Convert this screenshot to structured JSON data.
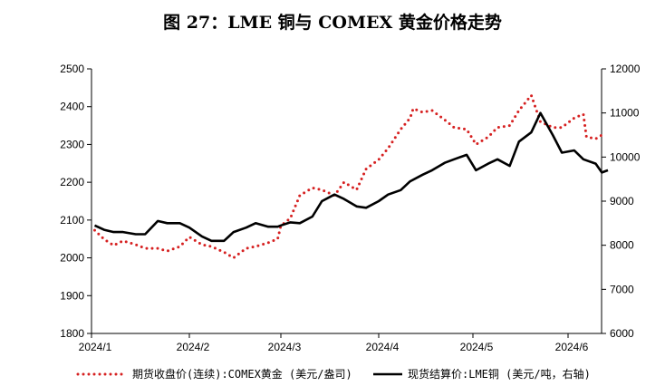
{
  "title": "图 27：LME 铜与 COMEX 黄金价格走势",
  "chart_data": {
    "type": "line",
    "x_ticks": [
      "2024/1",
      "2024/2",
      "2024/3",
      "2024/4",
      "2024/5",
      "2024/6"
    ],
    "y_left": {
      "min": 1800,
      "max": 2500,
      "ticks": [
        1800,
        1900,
        2000,
        2100,
        2200,
        2300,
        2400,
        2500
      ]
    },
    "y_right": {
      "min": 6000,
      "max": 12000,
      "ticks": [
        6000,
        7000,
        8000,
        9000,
        10000,
        11000,
        12000
      ]
    },
    "grid": false,
    "legend_position": "bottom",
    "series": [
      {
        "name": "期货收盘价(连续):COMEX黄金 (美元/盎司)",
        "axis": "left",
        "style": "dotted",
        "color": "#d62020",
        "x": [
          "2024-01-02",
          "2024-01-05",
          "2024-01-08",
          "2024-01-11",
          "2024-01-15",
          "2024-01-18",
          "2024-01-22",
          "2024-01-25",
          "2024-01-29",
          "2024-02-01",
          "2024-02-05",
          "2024-02-08",
          "2024-02-12",
          "2024-02-15",
          "2024-02-19",
          "2024-02-22",
          "2024-02-26",
          "2024-02-29",
          "2024-03-01",
          "2024-03-04",
          "2024-03-07",
          "2024-03-11",
          "2024-03-14",
          "2024-03-18",
          "2024-03-21",
          "2024-03-25",
          "2024-03-28",
          "2024-04-01",
          "2024-04-04",
          "2024-04-08",
          "2024-04-11",
          "2024-04-12",
          "2024-04-15",
          "2024-04-18",
          "2024-04-22",
          "2024-04-25",
          "2024-04-29",
          "2024-05-02",
          "2024-05-06",
          "2024-05-09",
          "2024-05-13",
          "2024-05-16",
          "2024-05-20",
          "2024-05-23",
          "2024-05-27",
          "2024-05-30",
          "2024-06-03",
          "2024-06-06",
          "2024-06-07",
          "2024-06-10",
          "2024-06-13"
        ],
        "values": [
          2073,
          2049,
          2033,
          2045,
          2035,
          2025,
          2025,
          2018,
          2030,
          2055,
          2035,
          2030,
          2015,
          2000,
          2025,
          2030,
          2040,
          2050,
          2085,
          2105,
          2165,
          2185,
          2180,
          2165,
          2200,
          2180,
          2235,
          2260,
          2290,
          2340,
          2370,
          2395,
          2385,
          2390,
          2365,
          2345,
          2340,
          2300,
          2320,
          2345,
          2350,
          2390,
          2430,
          2360,
          2345,
          2345,
          2370,
          2380,
          2320,
          2315,
          2330
        ]
      },
      {
        "name": "现货结算价:LME铜 (美元/吨，右轴)",
        "axis": "right",
        "style": "solid",
        "color": "#000000",
        "x": [
          "2024-01-02",
          "2024-01-05",
          "2024-01-08",
          "2024-01-11",
          "2024-01-15",
          "2024-01-18",
          "2024-01-22",
          "2024-01-25",
          "2024-01-29",
          "2024-02-01",
          "2024-02-05",
          "2024-02-08",
          "2024-02-12",
          "2024-02-15",
          "2024-02-19",
          "2024-02-22",
          "2024-02-26",
          "2024-02-29",
          "2024-03-01",
          "2024-03-04",
          "2024-03-07",
          "2024-03-11",
          "2024-03-14",
          "2024-03-18",
          "2024-03-21",
          "2024-03-25",
          "2024-03-28",
          "2024-04-01",
          "2024-04-04",
          "2024-04-08",
          "2024-04-11",
          "2024-04-15",
          "2024-04-18",
          "2024-04-22",
          "2024-04-25",
          "2024-04-29",
          "2024-05-02",
          "2024-05-06",
          "2024-05-09",
          "2024-05-13",
          "2024-05-16",
          "2024-05-20",
          "2024-05-23",
          "2024-05-27",
          "2024-05-30",
          "2024-06-03",
          "2024-06-06",
          "2024-06-10",
          "2024-06-12",
          "2024-06-14"
        ],
        "values": [
          8450,
          8350,
          8300,
          8300,
          8250,
          8250,
          8550,
          8500,
          8500,
          8400,
          8200,
          8100,
          8100,
          8300,
          8400,
          8500,
          8420,
          8420,
          8450,
          8520,
          8500,
          8650,
          9000,
          9150,
          9050,
          8880,
          8850,
          9000,
          9150,
          9250,
          9450,
          9600,
          9700,
          9870,
          9950,
          10050,
          9700,
          9850,
          9950,
          9800,
          10350,
          10560,
          11000,
          10500,
          10100,
          10150,
          9950,
          9850,
          9650,
          9700
        ]
      }
    ]
  }
}
